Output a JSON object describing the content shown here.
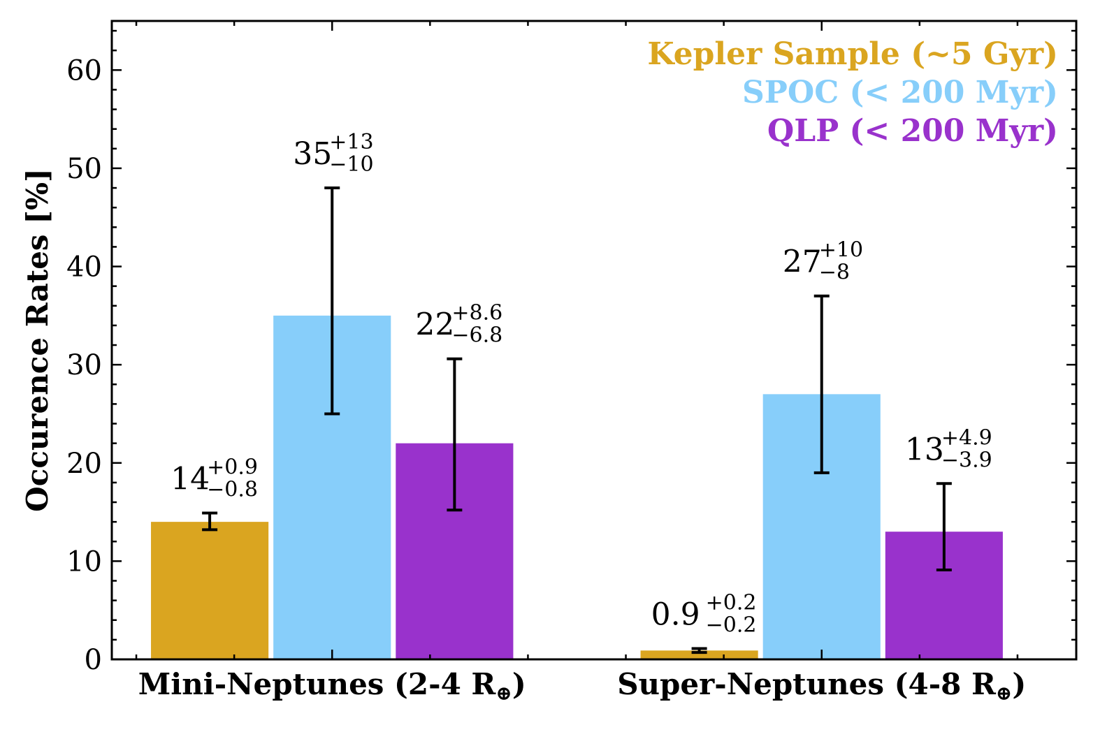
{
  "chart_data": {
    "type": "bar",
    "ylabel": "Occurence Rates [%]",
    "ylim": [
      0,
      65
    ],
    "yticks": [
      0,
      10,
      20,
      30,
      40,
      50,
      60
    ],
    "categories": [
      {
        "name": "Mini-Neptunes (2-4 R",
        "sub": "⊕",
        "suffix": ")"
      },
      {
        "name": "Super-Neptunes (4-8 R",
        "sub": "⊕",
        "suffix": ")"
      }
    ],
    "legend_position": "top-right",
    "series": [
      {
        "name": "Kepler Sample (~5 Gyr)",
        "color": "#DAA520",
        "values": [
          14,
          0.9
        ],
        "err_plus": [
          0.9,
          0.2
        ],
        "err_minus": [
          0.8,
          0.2
        ],
        "labels": [
          {
            "main": "14",
            "plus": "+0.9",
            "minus": "−0.8"
          },
          {
            "main": "0.9",
            "plus": "+0.2",
            "minus": "−0.2"
          }
        ]
      },
      {
        "name": "SPOC (< 200 Myr)",
        "color": "#87CEFA",
        "values": [
          35,
          27
        ],
        "err_plus": [
          13,
          10
        ],
        "err_minus": [
          10,
          8
        ],
        "labels": [
          {
            "main": "35",
            "plus": "+13",
            "minus": "−10"
          },
          {
            "main": "27",
            "plus": "+10",
            "minus": "−8"
          }
        ]
      },
      {
        "name": "QLP (< 200 Myr)",
        "color": "#9932CC",
        "values": [
          22,
          13
        ],
        "err_plus": [
          8.6,
          4.9
        ],
        "err_minus": [
          6.8,
          3.9
        ],
        "labels": [
          {
            "main": "22",
            "plus": "+8.6",
            "minus": "−6.8"
          },
          {
            "main": "13",
            "plus": "+4.9",
            "minus": "−3.9"
          }
        ]
      }
    ]
  }
}
